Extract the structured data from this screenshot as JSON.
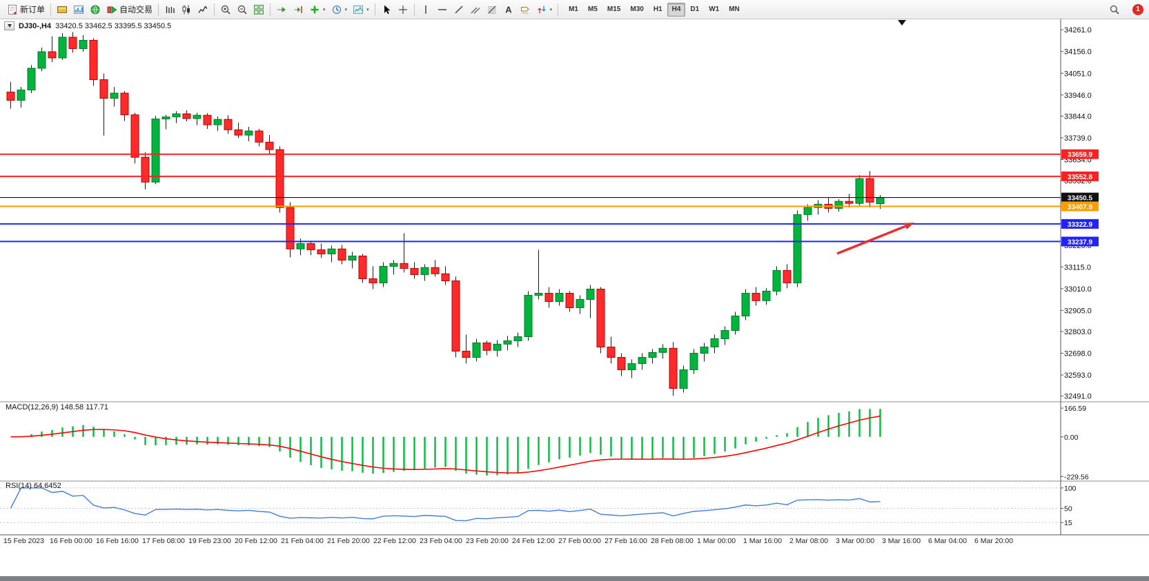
{
  "toolbar": {
    "items": [
      {
        "type": "button",
        "name": "new-order-button",
        "icon": "new-order",
        "label": "新订单"
      },
      {
        "type": "sep"
      },
      {
        "type": "button",
        "name": "market-watch-button",
        "icon": "gold-panel"
      },
      {
        "type": "button",
        "name": "data-window-button",
        "icon": "blue-chart"
      },
      {
        "type": "button",
        "name": "navigator-button",
        "icon": "green-globe"
      },
      {
        "type": "button",
        "name": "autotrade-button",
        "icon": "autotrade",
        "label": "自动交易"
      },
      {
        "type": "sep"
      },
      {
        "type": "button",
        "name": "bar-chart-button",
        "icon": "bars"
      },
      {
        "type": "button",
        "name": "candlestick-chart-button",
        "icon": "candles"
      },
      {
        "type": "button",
        "name": "line-chart-button",
        "icon": "linechart"
      },
      {
        "type": "sep"
      },
      {
        "type": "button",
        "name": "zoom-in-button",
        "icon": "zoom-in"
      },
      {
        "type": "button",
        "name": "zoom-out-button",
        "icon": "zoom-out"
      },
      {
        "type": "button",
        "name": "tile-windows-button",
        "icon": "tile"
      },
      {
        "type": "sep"
      },
      {
        "type": "button",
        "name": "auto-scroll-button",
        "icon": "auto-scroll"
      },
      {
        "type": "button",
        "name": "chart-shift-button",
        "icon": "chart-shift"
      },
      {
        "type": "button",
        "name": "indicators-button",
        "icon": "indicators",
        "dropdown": true
      },
      {
        "type": "button",
        "name": "periods-button",
        "icon": "periods",
        "dropdown": true
      },
      {
        "type": "button",
        "name": "templates-button",
        "icon": "template",
        "dropdown": true
      },
      {
        "type": "sep"
      },
      {
        "type": "button",
        "name": "cursor-button",
        "icon": "cursor"
      },
      {
        "type": "button",
        "name": "crosshair-button",
        "icon": "crosshair"
      },
      {
        "type": "sep"
      },
      {
        "type": "button",
        "name": "vertical-line-button",
        "icon": "vline"
      },
      {
        "type": "button",
        "name": "horizontal-line-button",
        "icon": "hline"
      },
      {
        "type": "button",
        "name": "trendline-button",
        "icon": "tline"
      },
      {
        "type": "button",
        "name": "channel-button",
        "icon": "channel"
      },
      {
        "type": "button",
        "name": "fibonacci-button",
        "icon": "fibo"
      },
      {
        "type": "button",
        "name": "text-button",
        "icon": "text"
      },
      {
        "type": "button",
        "name": "text-label-button",
        "icon": "label"
      },
      {
        "type": "button",
        "name": "arrows-button",
        "icon": "arrows",
        "dropdown": true
      },
      {
        "type": "sep"
      }
    ],
    "timeframes": [
      "M1",
      "M5",
      "M15",
      "M30",
      "H1",
      "H4",
      "D1",
      "W1",
      "MN"
    ],
    "active_timeframe": "H4",
    "notification_count": "1"
  },
  "chart_header": {
    "symbol": "DJ30-,H4",
    "ohlc": "33420.5 33462.5 33395.5 33450.5"
  },
  "chart_data": {
    "type": "candlestick",
    "symbol": "DJ30-",
    "timeframe": "H4",
    "price_range": {
      "min": 32480,
      "max": 34285
    },
    "price_axis_labels": [
      34261.0,
      34156.0,
      34051.0,
      33946.0,
      33844.0,
      33739.0,
      33634.0,
      33532.0,
      33427.0,
      33325.0,
      33220.0,
      33115.0,
      33010.0,
      32905.0,
      32803.0,
      32698.0,
      32593.0,
      32491.0
    ],
    "time_axis_labels": [
      "15 Feb 2023",
      "16 Feb 00:00",
      "16 Feb 16:00",
      "17 Feb 08:00",
      "19 Feb 23:00",
      "20 Feb 12:00",
      "21 Feb 04:00",
      "21 Feb 20:00",
      "22 Feb 12:00",
      "23 Feb 04:00",
      "23 Feb 20:00",
      "24 Feb 12:00",
      "27 Feb 00:00",
      "27 Feb 16:00",
      "28 Feb 08:00",
      "1 Mar 00:00",
      "1 Mar 16:00",
      "2 Mar 08:00",
      "3 Mar 00:00",
      "3 Mar 16:00",
      "6 Mar 04:00",
      "6 Mar 20:00"
    ],
    "candles": [
      [
        33960,
        34010,
        33880,
        33920
      ],
      [
        33920,
        33985,
        33885,
        33970
      ],
      [
        33970,
        34090,
        33955,
        34075
      ],
      [
        34075,
        34175,
        34060,
        34155
      ],
      [
        34155,
        34230,
        34105,
        34125
      ],
      [
        34125,
        34245,
        34115,
        34225
      ],
      [
        34225,
        34250,
        34150,
        34170
      ],
      [
        34170,
        34235,
        34155,
        34210
      ],
      [
        34210,
        34220,
        33990,
        34020
      ],
      [
        34020,
        34050,
        33750,
        33930
      ],
      [
        33930,
        33985,
        33890,
        33955
      ],
      [
        33955,
        33965,
        33820,
        33850
      ],
      [
        33850,
        33860,
        33615,
        33645
      ],
      [
        33645,
        33670,
        33490,
        33525
      ],
      [
        33525,
        33845,
        33515,
        33830
      ],
      [
        33830,
        33850,
        33780,
        33840
      ],
      [
        33840,
        33868,
        33810,
        33855
      ],
      [
        33855,
        33872,
        33818,
        33832
      ],
      [
        33832,
        33860,
        33800,
        33848
      ],
      [
        33848,
        33858,
        33782,
        33802
      ],
      [
        33802,
        33842,
        33772,
        33828
      ],
      [
        33828,
        33848,
        33758,
        33778
      ],
      [
        33778,
        33812,
        33738,
        33752
      ],
      [
        33752,
        33792,
        33722,
        33772
      ],
      [
        33772,
        33782,
        33698,
        33718
      ],
      [
        33718,
        33752,
        33662,
        33682
      ],
      [
        33682,
        33698,
        33378,
        33402
      ],
      [
        33402,
        33428,
        33162,
        33202
      ],
      [
        33202,
        33252,
        33172,
        33228
      ],
      [
        33228,
        33242,
        33172,
        33198
      ],
      [
        33198,
        33228,
        33158,
        33178
      ],
      [
        33178,
        33218,
        33138,
        33202
      ],
      [
        33202,
        33222,
        33128,
        33148
      ],
      [
        33148,
        33188,
        33108,
        33168
      ],
      [
        33168,
        33178,
        33038,
        33058
      ],
      [
        33058,
        33118,
        33008,
        33038
      ],
      [
        33038,
        33138,
        33018,
        33118
      ],
      [
        33118,
        33148,
        33078,
        33132
      ],
      [
        33132,
        33278,
        33088,
        33108
      ],
      [
        33108,
        33138,
        33058,
        33078
      ],
      [
        33078,
        33128,
        33048,
        33112
      ],
      [
        33112,
        33148,
        33068,
        33082
      ],
      [
        33082,
        33118,
        33028,
        33048
      ],
      [
        33048,
        33068,
        32678,
        32708
      ],
      [
        32708,
        32788,
        32648,
        32678
      ],
      [
        32678,
        32768,
        32658,
        32748
      ],
      [
        32748,
        32758,
        32688,
        32712
      ],
      [
        32712,
        32762,
        32682,
        32742
      ],
      [
        32742,
        32782,
        32712,
        32758
      ],
      [
        32758,
        32798,
        32728,
        32778
      ],
      [
        32778,
        32998,
        32758,
        32978
      ],
      [
        32978,
        33198,
        32958,
        32988
      ],
      [
        32988,
        33018,
        32918,
        32948
      ],
      [
        32948,
        33008,
        32928,
        32988
      ],
      [
        32988,
        32998,
        32898,
        32918
      ],
      [
        32918,
        32978,
        32888,
        32958
      ],
      [
        32958,
        33028,
        32868,
        33008
      ],
      [
        33008,
        33018,
        32698,
        32728
      ],
      [
        32728,
        32778,
        32648,
        32678
      ],
      [
        32678,
        32698,
        32588,
        32618
      ],
      [
        32618,
        32668,
        32578,
        32648
      ],
      [
        32648,
        32698,
        32618,
        32678
      ],
      [
        32678,
        32718,
        32648,
        32702
      ],
      [
        32702,
        32742,
        32672,
        32722
      ],
      [
        32722,
        32752,
        32492,
        32528
      ],
      [
        32528,
        32638,
        32508,
        32618
      ],
      [
        32618,
        32718,
        32598,
        32698
      ],
      [
        32698,
        32748,
        32658,
        32728
      ],
      [
        32728,
        32788,
        32698,
        32768
      ],
      [
        32768,
        32828,
        32738,
        32808
      ],
      [
        32808,
        32898,
        32788,
        32878
      ],
      [
        32878,
        33008,
        32858,
        32988
      ],
      [
        32988,
        33018,
        32928,
        32952
      ],
      [
        32952,
        33012,
        32932,
        32998
      ],
      [
        32998,
        33118,
        32978,
        33098
      ],
      [
        33098,
        33128,
        33012,
        33038
      ],
      [
        33038,
        33388,
        33018,
        33368
      ],
      [
        33368,
        33418,
        33338,
        33402
      ],
      [
        33402,
        33438,
        33368,
        33418
      ],
      [
        33418,
        33448,
        33378,
        33398
      ],
      [
        33398,
        33442,
        33382,
        33432
      ],
      [
        33432,
        33468,
        33402,
        33422
      ],
      [
        33422,
        33558,
        33412,
        33542
      ],
      [
        33542,
        33578,
        33402,
        33428
      ],
      [
        33420.5,
        33462.5,
        33395.5,
        33450.5
      ]
    ],
    "bull_color": "#00b43c",
    "bear_color": "#ff2b2b",
    "levels": [
      {
        "value": 33659.9,
        "label": "33659.9",
        "color": "#ff2020",
        "width": 2,
        "name": "resistance-line-1"
      },
      {
        "value": 33552.8,
        "label": "33552.8",
        "color": "#ff2020",
        "width": 2,
        "name": "resistance-line-2"
      },
      {
        "value": 33450.5,
        "label": "33450.5",
        "color": "#111111",
        "width": 1.2,
        "name": "current-price-line"
      },
      {
        "value": 33407.9,
        "label": "33407.9",
        "color": "#ff9c00",
        "width": 2,
        "name": "orange-line"
      },
      {
        "value": 33322.9,
        "label": "33322.9",
        "color": "#2222ff",
        "width": 2,
        "name": "support-line-1"
      },
      {
        "value": 33237.9,
        "label": "33237.9",
        "color": "#2222ff",
        "width": 2,
        "name": "support-line-2"
      }
    ],
    "annotation_arrow": {
      "from": [
        1213,
        368
      ],
      "to": [
        1325,
        323
      ],
      "color": "#e8312a"
    },
    "indicators": [
      {
        "name": "MACD",
        "label": "MACD(12,26,9) 148.58 117.71",
        "params": [
          12,
          26,
          9
        ],
        "values_text": [
          "148.58",
          "117.71"
        ],
        "axis_labels": [
          {
            "text": "166.59",
            "value": 166.59
          },
          {
            "text": "0.00",
            "value": 0
          },
          {
            "text": "-229.56",
            "value": -229.56
          }
        ],
        "histogram_color": "#00be3c",
        "signal_color": "#ff0000"
      },
      {
        "name": "RSI",
        "label": "RSI(14) 64.6452",
        "period": 14,
        "value_text": "64.6452",
        "axis_labels": [
          {
            "text": "100",
            "value": 100
          },
          {
            "text": "50",
            "value": 50
          },
          {
            "text": "15",
            "value": 15
          }
        ],
        "line_color": "#3f7fd6"
      }
    ]
  }
}
